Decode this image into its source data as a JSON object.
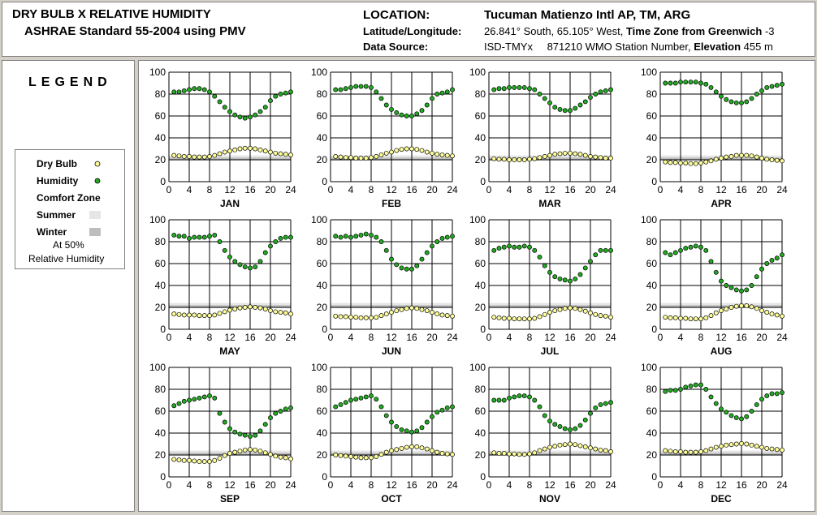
{
  "header": {
    "title_line1": "DRY BULB  X  RELATIVE HUMIDITY",
    "title_line2": "ASHRAE Standard 55-2004 using PMV",
    "location_label": "LOCATION:",
    "location_value": "Tucuman Matienzo Intl AP, TM, ARG",
    "latlon_label": "Latitude/Longitude:",
    "latlon_value": "26.841° South, 65.105° West,",
    "timezone_label": "Time Zone from Greenwich",
    "timezone_value": "-3",
    "source_label": "Data Source:",
    "source_value": "ISD-TMYx",
    "wmo_value": "871210 WMO Station Number,",
    "elevation_label": "Elevation",
    "elevation_value": "455 m"
  },
  "legend": {
    "title": "LEGEND",
    "dry_bulb": "Dry Bulb",
    "humidity": "Humidity",
    "comfort_zone": "Comfort Zone",
    "summer": "Summer",
    "winter": "Winter",
    "at50": "At 50%",
    "relhum": "Relative Humidity"
  },
  "colors": {
    "dry_bulb_fill": "#ffff99",
    "humidity_fill": "#22aa22",
    "summer_band": "#e6e6e6",
    "winter_band": "#bdbdbd"
  },
  "chart_data": {
    "type": "scatter",
    "x_ticks": [
      0,
      4,
      8,
      12,
      16,
      20,
      24
    ],
    "y_ticks": [
      0,
      20,
      40,
      60,
      80,
      100
    ],
    "xlim": [
      0,
      24
    ],
    "ylim": [
      0,
      100
    ],
    "x_hours": [
      1,
      2,
      3,
      4,
      5,
      6,
      7,
      8,
      9,
      10,
      11,
      12,
      13,
      14,
      15,
      16,
      17,
      18,
      19,
      20,
      21,
      22,
      23,
      24
    ],
    "comfort_summer": [
      20.5,
      24
    ],
    "comfort_winter": [
      19.5,
      22
    ],
    "months": [
      {
        "name": "JAN",
        "humidity": [
          82,
          82,
          83,
          84,
          85,
          85,
          84,
          82,
          78,
          73,
          68,
          64,
          61,
          59,
          58,
          59,
          61,
          64,
          68,
          74,
          78,
          80,
          81,
          82
        ],
        "dry_bulb": [
          24,
          23.5,
          23,
          23,
          22.5,
          22.5,
          22.5,
          23,
          24,
          25.5,
          27,
          28,
          29,
          30,
          30.5,
          30.5,
          30,
          29,
          28,
          27,
          26,
          25.5,
          25,
          24.5
        ]
      },
      {
        "name": "FEB",
        "humidity": [
          84,
          84,
          85,
          86,
          87,
          87,
          87,
          86,
          82,
          76,
          70,
          66,
          63,
          61,
          60,
          60,
          62,
          65,
          70,
          76,
          80,
          81,
          82,
          84
        ],
        "dry_bulb": [
          23,
          22.5,
          22,
          22,
          21.5,
          21.5,
          21.5,
          22,
          23,
          24.5,
          26,
          27,
          28.5,
          29.5,
          30,
          30,
          29.5,
          28.5,
          27,
          26,
          25,
          24.5,
          24,
          23.5
        ]
      },
      {
        "name": "MAR",
        "humidity": [
          84,
          85,
          85,
          86,
          86,
          86,
          86,
          85,
          84,
          80,
          76,
          72,
          68,
          66,
          65,
          65,
          67,
          70,
          73,
          77,
          80,
          82,
          83,
          84
        ],
        "dry_bulb": [
          21,
          20.5,
          20.5,
          20,
          20,
          20,
          20,
          20.5,
          21,
          22,
          23,
          24,
          25,
          25.5,
          26,
          26,
          25.5,
          25,
          24,
          23,
          22.5,
          22,
          21.5,
          21.5
        ]
      },
      {
        "name": "APR",
        "humidity": [
          90,
          90,
          90,
          91,
          91,
          91,
          91,
          90,
          89,
          86,
          82,
          78,
          75,
          73,
          72,
          72,
          73,
          76,
          80,
          83,
          86,
          87,
          88,
          89
        ],
        "dry_bulb": [
          18,
          17.5,
          17.5,
          17,
          17,
          16.5,
          16.5,
          17,
          18,
          19,
          20.5,
          21.5,
          22.5,
          23,
          24,
          24,
          24,
          23.5,
          22.5,
          21.5,
          20.5,
          20,
          19.5,
          19
        ]
      },
      {
        "name": "MAY",
        "humidity": [
          86,
          85,
          85,
          83,
          84,
          84,
          84,
          85,
          86,
          80,
          72,
          66,
          62,
          59,
          57,
          56,
          57,
          62,
          70,
          76,
          80,
          83,
          84,
          84
        ],
        "dry_bulb": [
          14,
          13.5,
          13,
          13,
          13,
          12.5,
          12.5,
          12.5,
          13,
          14.5,
          16,
          17.5,
          18.5,
          19.5,
          20,
          20.5,
          20,
          19.5,
          18.5,
          17,
          16,
          15.5,
          15,
          14
        ]
      },
      {
        "name": "JUN",
        "humidity": [
          85,
          84,
          85,
          84,
          85,
          86,
          87,
          86,
          84,
          80,
          72,
          64,
          59,
          56,
          55,
          55,
          58,
          64,
          70,
          76,
          80,
          83,
          84,
          85
        ],
        "dry_bulb": [
          12,
          11.5,
          11.5,
          11,
          11,
          10.5,
          10.5,
          10.5,
          11,
          12.5,
          14,
          15.5,
          17,
          18,
          19,
          19.5,
          19,
          18,
          17,
          15.5,
          14,
          13,
          12.5,
          12
        ]
      },
      {
        "name": "JUL",
        "humidity": [
          72,
          74,
          75,
          76,
          75,
          75,
          76,
          75,
          72,
          66,
          58,
          52,
          48,
          46,
          45,
          44,
          46,
          50,
          56,
          62,
          68,
          72,
          72,
          72
        ],
        "dry_bulb": [
          11,
          10.5,
          10,
          10,
          9.5,
          9.5,
          9.5,
          9.5,
          10,
          11.5,
          13.5,
          15.5,
          17,
          18,
          19,
          19.5,
          19,
          18,
          16.5,
          15,
          13.5,
          12.5,
          12,
          11
        ]
      },
      {
        "name": "AUG",
        "humidity": [
          70,
          68,
          70,
          72,
          74,
          75,
          76,
          75,
          72,
          62,
          52,
          44,
          40,
          38,
          36,
          35,
          36,
          40,
          48,
          55,
          60,
          63,
          65,
          68
        ],
        "dry_bulb": [
          11,
          10.5,
          10.5,
          10,
          10,
          9.5,
          9.5,
          9.5,
          10.5,
          12.5,
          15,
          17,
          18.5,
          20,
          21,
          21.5,
          21.5,
          20.5,
          19,
          17,
          15.5,
          14,
          13,
          12
        ]
      },
      {
        "name": "SEP",
        "humidity": [
          65,
          67,
          69,
          70,
          71,
          72,
          73,
          74,
          72,
          58,
          50,
          44,
          41,
          39,
          38,
          37,
          38,
          42,
          48,
          54,
          58,
          60,
          62,
          63
        ],
        "dry_bulb": [
          16,
          15.5,
          15,
          15,
          14.5,
          14,
          14,
          14,
          15,
          17,
          19.5,
          21.5,
          22.5,
          23.5,
          24.5,
          25,
          24.5,
          23.5,
          22,
          20.5,
          19,
          18,
          17.5,
          16.5
        ]
      },
      {
        "name": "OCT",
        "humidity": [
          64,
          66,
          68,
          70,
          71,
          72,
          73,
          74,
          71,
          64,
          56,
          50,
          46,
          43,
          42,
          41,
          42,
          45,
          50,
          55,
          59,
          61,
          63,
          64
        ],
        "dry_bulb": [
          20,
          19.5,
          19,
          18.5,
          18,
          17.5,
          17.5,
          17.5,
          18.5,
          20.5,
          22.5,
          24,
          25,
          26,
          27,
          27.5,
          27.5,
          26.5,
          25.5,
          24,
          22.5,
          21.5,
          21,
          20.5
        ]
      },
      {
        "name": "NOV",
        "humidity": [
          70,
          70,
          70,
          72,
          73,
          74,
          74,
          73,
          70,
          64,
          56,
          51,
          48,
          46,
          44,
          43,
          44,
          47,
          52,
          58,
          63,
          66,
          67,
          68
        ],
        "dry_bulb": [
          22,
          21.5,
          21.5,
          21,
          21,
          20.5,
          20.5,
          21,
          22,
          24,
          25.5,
          27,
          28,
          29,
          29.5,
          30,
          29.5,
          28.5,
          27.5,
          26.5,
          25.5,
          24.5,
          24,
          23
        ]
      },
      {
        "name": "DEC",
        "humidity": [
          78,
          79,
          79,
          80,
          82,
          83,
          84,
          84,
          80,
          73,
          67,
          62,
          59,
          56,
          54,
          53,
          55,
          60,
          66,
          71,
          74,
          76,
          76,
          77
        ],
        "dry_bulb": [
          24,
          23.5,
          23,
          23,
          22.5,
          22.5,
          22.5,
          23,
          24,
          25.5,
          27,
          28,
          29,
          29.5,
          30,
          30.5,
          30,
          29,
          28,
          27,
          26,
          25.5,
          25,
          24.5
        ]
      }
    ]
  }
}
